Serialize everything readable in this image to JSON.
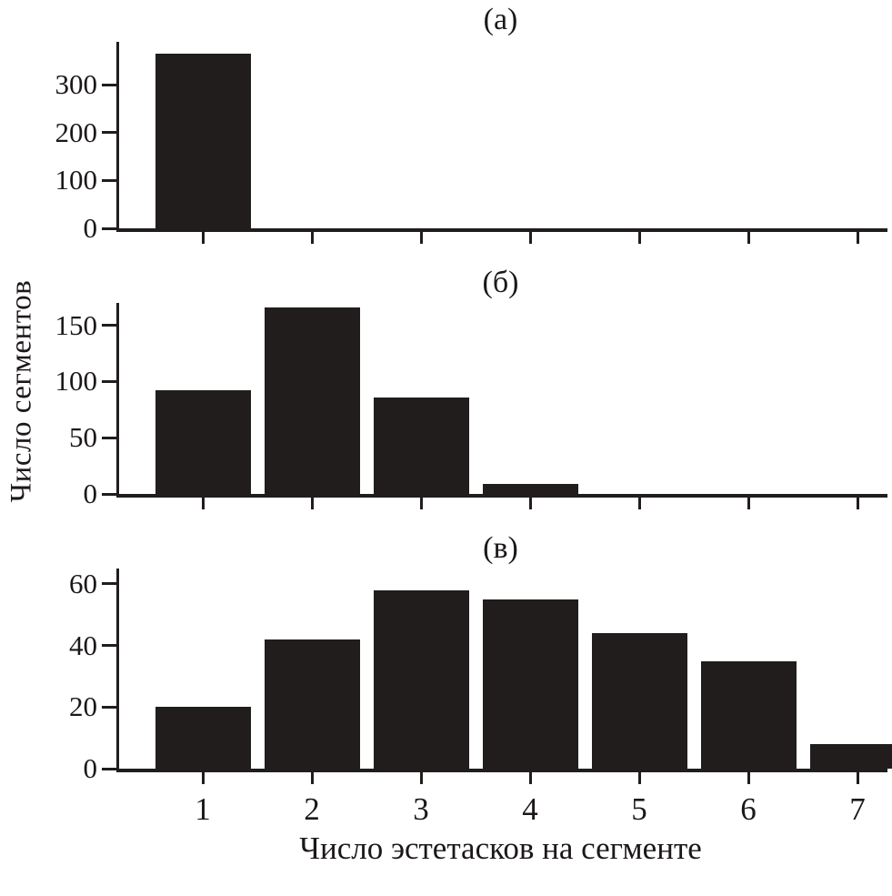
{
  "figure": {
    "ylabel": "Число сегментов",
    "xlabel": "Число эстетасков на сегменте",
    "bar_color": "#211d1d",
    "background_color": "#ffffff"
  },
  "chart_data": [
    {
      "type": "bar",
      "title": "(а)",
      "categories": [
        "1",
        "2",
        "3",
        "4",
        "5",
        "6",
        "7"
      ],
      "values": [
        365,
        0,
        0,
        0,
        0,
        0,
        0
      ],
      "yticks": [
        0,
        100,
        200,
        300
      ],
      "ylim": [
        0,
        390
      ],
      "show_x_tick_labels": false,
      "grid": false,
      "legend": false
    },
    {
      "type": "bar",
      "title": "(б)",
      "categories": [
        "1",
        "2",
        "3",
        "4",
        "5",
        "6",
        "7"
      ],
      "values": [
        92,
        166,
        86,
        9,
        0,
        0,
        0
      ],
      "yticks": [
        0,
        50,
        100,
        150
      ],
      "ylim": [
        0,
        170
      ],
      "show_x_tick_labels": false,
      "grid": false,
      "legend": false
    },
    {
      "type": "bar",
      "title": "(в)",
      "categories": [
        "1",
        "2",
        "3",
        "4",
        "5",
        "6",
        "7"
      ],
      "values": [
        20,
        42,
        58,
        55,
        44,
        35,
        8
      ],
      "yticks": [
        0,
        20,
        40,
        60
      ],
      "ylim": [
        0,
        65
      ],
      "show_x_tick_labels": true,
      "grid": false,
      "legend": false
    }
  ]
}
